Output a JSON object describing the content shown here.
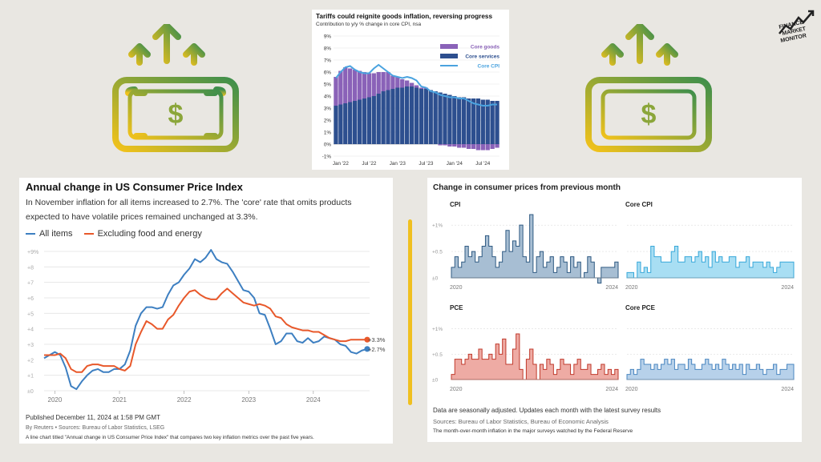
{
  "colors": {
    "money_gradient_start": "#f2c21b",
    "money_gradient_end": "#3f8f4c",
    "all_items": "#3d7fc1",
    "ex_food_energy": "#e8582a",
    "core_goods": "#8a62b8",
    "core_services": "#2d4f8f",
    "core_cpi": "#4aa3df",
    "cpi_fill": "#a7bed3",
    "core_cpi_fill": "#a8def3",
    "pce_fill": "#eeaba4",
    "core_pce_fill": "#b7d1ea"
  },
  "icons": [
    "money-with-arrows-icon",
    "money-with-arrows-icon",
    "finance-market-monitor-logo"
  ],
  "logo_text": "FINANCE MARKET MONITOR",
  "top_chart": {
    "title": "Tariffs could reignite goods inflation, reversing progress",
    "subtitle": "Contribution to y/y % change in core CPI, nsa",
    "y_ticks": [
      "9%",
      "8%",
      "7%",
      "6%",
      "5%",
      "4%",
      "3%",
      "2%",
      "1%",
      "0%",
      "-1%"
    ],
    "x_ticks": [
      "Jan '22",
      "Jul '22",
      "Jan '23",
      "Jul '23",
      "Jan '24",
      "Jul '24"
    ],
    "legend": [
      "Core goods",
      "Core services",
      "Core CPI"
    ]
  },
  "left_chart": {
    "title": "Annual change in US Consumer Price Index",
    "description": "In November inflation for all items increased to 2.7%. The 'core' rate that omits products expected to have volatile prices remained unchanged at 3.3%.",
    "legend_all": "All items",
    "legend_ex": "Excluding food and energy",
    "y_ticks": [
      "+9%",
      "+8",
      "+7",
      "+6",
      "+5",
      "+4",
      "+3",
      "+2",
      "+1",
      "±0"
    ],
    "x_ticks": [
      "2020",
      "2021",
      "2022",
      "2023",
      "2024"
    ],
    "end_label_core": "+3.3%",
    "end_label_all": "+2.7%",
    "published": "Published December 11, 2024 at 1:58 PM GMT",
    "byline": "By Reuters • Sources: Bureau of Labor Statistics, LSEG",
    "alt_text": "A line chart titled \"Annual change in US Consumer Price Index\" that compares two key inflation metrics over the past five years."
  },
  "right_chart": {
    "title": "Change in consumer prices from previous month",
    "panels": [
      {
        "name": "CPI",
        "ticks": [
          "+1%",
          "+0.5",
          "±0"
        ],
        "x_ticks": [
          "2020",
          "2024"
        ]
      },
      {
        "name": "Core CPI",
        "x_ticks": [
          "2020",
          "2024"
        ]
      },
      {
        "name": "PCE",
        "ticks": [
          "+1%",
          "+0.5",
          "±0"
        ],
        "x_ticks": [
          "2020",
          "2024"
        ]
      },
      {
        "name": "Core PCE",
        "x_ticks": [
          "2020",
          "2024"
        ]
      }
    ],
    "note": "Data are seasonally adjusted. Updates each month with the latest survey results",
    "sources": "Sources: Bureau of Labor Statistics, Bureau of Economic Analysis",
    "caption": "The month-over-month inflation in the major surveys watched by the Federal Reserve"
  },
  "chart_data": [
    {
      "type": "bar",
      "title": "Tariffs could reignite goods inflation, reversing progress",
      "subtitle": "Contribution to y/y % change in core CPI, nsa",
      "ylim": [
        -1,
        9
      ],
      "x_start": "2021-12",
      "x_end": "2024-10",
      "series": [
        {
          "name": "Core services",
          "values": [
            3.2,
            3.3,
            3.4,
            3.5,
            3.6,
            3.7,
            3.8,
            3.9,
            4.0,
            4.2,
            4.4,
            4.5,
            4.6,
            4.7,
            4.7,
            4.8,
            4.8,
            4.7,
            4.6,
            4.6,
            4.5,
            4.4,
            4.3,
            4.2,
            4.1,
            4.0,
            3.9,
            3.9,
            3.8,
            3.8,
            3.8,
            3.7,
            3.7,
            3.6,
            3.6
          ]
        },
        {
          "name": "Core goods",
          "values": [
            2.4,
            2.8,
            3.0,
            2.8,
            2.6,
            2.4,
            2.2,
            2.0,
            1.9,
            1.8,
            1.6,
            1.5,
            1.1,
            0.9,
            0.7,
            0.5,
            0.3,
            0.2,
            0.1,
            0.1,
            0.0,
            0.0,
            -0.1,
            -0.1,
            -0.2,
            -0.2,
            -0.3,
            -0.3,
            -0.4,
            -0.4,
            -0.5,
            -0.5,
            -0.5,
            -0.4,
            -0.3
          ]
        },
        {
          "name": "Core CPI",
          "values": [
            5.5,
            6.0,
            6.4,
            6.5,
            6.2,
            6.0,
            5.9,
            5.9,
            6.3,
            6.6,
            6.3,
            6.0,
            5.7,
            5.6,
            5.5,
            5.6,
            5.5,
            5.3,
            4.8,
            4.7,
            4.4,
            4.3,
            4.1,
            4.0,
            3.9,
            3.9,
            3.8,
            3.8,
            3.6,
            3.4,
            3.3,
            3.2,
            3.2,
            3.3,
            3.3
          ]
        }
      ]
    },
    {
      "type": "line",
      "title": "Annual change in US Consumer Price Index",
      "xlabel": "",
      "ylabel": "",
      "ylim": [
        0,
        9
      ],
      "x_range": [
        "2019-11",
        "2024-11"
      ],
      "series": [
        {
          "name": "All items",
          "values": [
            2.1,
            2.3,
            2.5,
            2.3,
            1.5,
            0.3,
            0.1,
            0.6,
            1.0,
            1.3,
            1.4,
            1.2,
            1.2,
            1.4,
            1.4,
            1.7,
            2.6,
            4.2,
            5.0,
            5.4,
            5.4,
            5.3,
            5.4,
            6.2,
            6.8,
            7.0,
            7.5,
            7.9,
            8.5,
            8.3,
            8.6,
            9.1,
            8.5,
            8.3,
            8.2,
            7.7,
            7.1,
            6.5,
            6.4,
            6.0,
            5.0,
            4.9,
            4.0,
            3.0,
            3.2,
            3.7,
            3.7,
            3.2,
            3.1,
            3.4,
            3.1,
            3.2,
            3.5,
            3.4,
            3.3,
            3.0,
            2.9,
            2.5,
            2.4,
            2.6,
            2.7
          ]
        },
        {
          "name": "Excluding food and energy",
          "values": [
            2.3,
            2.3,
            2.3,
            2.4,
            2.1,
            1.4,
            1.2,
            1.2,
            1.6,
            1.7,
            1.7,
            1.6,
            1.6,
            1.6,
            1.4,
            1.3,
            1.6,
            3.0,
            3.8,
            4.5,
            4.3,
            4.0,
            4.0,
            4.6,
            4.9,
            5.5,
            6.0,
            6.4,
            6.5,
            6.2,
            6.0,
            5.9,
            5.9,
            6.3,
            6.6,
            6.3,
            6.0,
            5.7,
            5.6,
            5.5,
            5.6,
            5.5,
            5.3,
            4.8,
            4.7,
            4.3,
            4.1,
            4.0,
            3.9,
            3.9,
            3.8,
            3.8,
            3.6,
            3.4,
            3.3,
            3.2,
            3.2,
            3.3,
            3.3,
            3.3,
            3.3
          ]
        }
      ]
    },
    {
      "type": "area",
      "title": "CPI",
      "ylim": [
        0,
        1.2
      ],
      "values": [
        0.2,
        0.4,
        0.2,
        0.3,
        0.6,
        0.4,
        0.5,
        0.3,
        0.4,
        0.6,
        0.8,
        0.6,
        0.4,
        0.2,
        0.3,
        0.5,
        0.9,
        0.5,
        0.7,
        0.6,
        1.0,
        0.4,
        0.3,
        1.2,
        0.1,
        0.4,
        0.5,
        0.2,
        0.3,
        0.4,
        0.1,
        0.2,
        0.4,
        0.3,
        0.1,
        0.4,
        0.2,
        0.3,
        0.0,
        0.1,
        0.4,
        0.3,
        0.0,
        -0.1,
        0.2,
        0.2,
        0.2,
        0.2,
        0.3
      ]
    },
    {
      "type": "area",
      "title": "Core CPI",
      "ylim": [
        0,
        1.2
      ],
      "values": [
        0.1,
        0.1,
        0.0,
        0.3,
        0.1,
        0.2,
        0.1,
        0.6,
        0.4,
        0.4,
        0.3,
        0.3,
        0.3,
        0.5,
        0.6,
        0.3,
        0.3,
        0.4,
        0.4,
        0.3,
        0.4,
        0.5,
        0.3,
        0.4,
        0.2,
        0.5,
        0.3,
        0.4,
        0.3,
        0.3,
        0.4,
        0.4,
        0.2,
        0.3,
        0.3,
        0.4,
        0.2,
        0.3,
        0.3,
        0.3,
        0.2,
        0.3,
        0.2,
        0.1,
        0.2,
        0.3,
        0.3,
        0.3,
        0.3
      ]
    },
    {
      "type": "area",
      "title": "PCE",
      "ylim": [
        0,
        1.2
      ],
      "values": [
        0.1,
        0.4,
        0.4,
        0.3,
        0.4,
        0.5,
        0.4,
        0.4,
        0.6,
        0.4,
        0.4,
        0.5,
        0.4,
        0.7,
        0.5,
        0.8,
        0.3,
        0.3,
        0.6,
        0.9,
        0.2,
        0.0,
        0.4,
        0.6,
        0.3,
        0.0,
        0.3,
        0.2,
        0.4,
        0.3,
        0.1,
        0.2,
        0.4,
        0.3,
        0.3,
        0.1,
        0.3,
        0.4,
        0.2,
        0.2,
        0.3,
        0.1,
        0.1,
        0.2,
        0.3,
        0.1,
        0.2,
        0.1,
        0.2
      ]
    },
    {
      "type": "area",
      "title": "Core PCE",
      "ylim": [
        0,
        1.2
      ],
      "values": [
        0.1,
        0.2,
        0.1,
        0.2,
        0.4,
        0.3,
        0.3,
        0.2,
        0.3,
        0.2,
        0.3,
        0.4,
        0.3,
        0.4,
        0.2,
        0.3,
        0.3,
        0.2,
        0.4,
        0.3,
        0.2,
        0.2,
        0.3,
        0.4,
        0.3,
        0.2,
        0.3,
        0.2,
        0.4,
        0.3,
        0.2,
        0.3,
        0.2,
        0.3,
        0.1,
        0.3,
        0.2,
        0.2,
        0.3,
        0.2,
        0.1,
        0.2,
        0.2,
        0.3,
        0.1,
        0.2,
        0.2,
        0.3,
        0.3
      ]
    }
  ]
}
